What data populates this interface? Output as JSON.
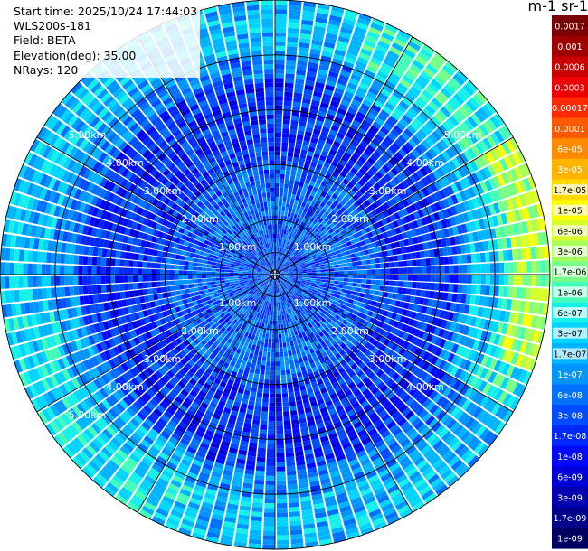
{
  "info": {
    "start_time": "Start time: 2025/10/24 17:44:03",
    "instrument": "WLS200s-181",
    "field": "Field: BETA",
    "elevation": "Elevation(deg): 35.00",
    "nrays": "NRays: 120"
  },
  "colorbar": {
    "title": "m-1 sr-1",
    "ticks": [
      "0.0017",
      "0.001",
      "0.0006",
      "0.0003",
      "0.00017",
      "0.0001",
      "6e-05",
      "3e-05",
      "1.7e-05",
      "1e-05",
      "6e-06",
      "3e-06",
      "1.7e-06",
      "1e-06",
      "6e-07",
      "3e-07",
      "1.7e-07",
      "1e-07",
      "6e-08",
      "3e-08",
      "1.7e-08",
      "1e-08",
      "6e-09",
      "3e-09",
      "1.7e-09",
      "1e-09"
    ],
    "colors": [
      "#7a0000",
      "#a00000",
      "#c80000",
      "#ef0000",
      "#ff2a00",
      "#ff5a00",
      "#ff8a00",
      "#ffb400",
      "#ffd800",
      "#ffff00",
      "#d8ff2a",
      "#a8ff5a",
      "#78ff88",
      "#44ffb8",
      "#16f0e8",
      "#00d4ff",
      "#00b4ff",
      "#0094ff",
      "#0070ff",
      "#004cff",
      "#0028ff",
      "#0008ff",
      "#0000d8",
      "#0000b0",
      "#000088",
      "#000060"
    ]
  },
  "chart_data": {
    "type": "heatmap",
    "projection": "polar (PPI scan)",
    "field": "BETA",
    "elevation_deg": 35.0,
    "n_rays": 120,
    "range_unit": "km",
    "max_range_km": 5.0,
    "range_ring_labels": [
      "1.00km",
      "2.00km",
      "3.00km",
      "4.00km",
      "5.00km"
    ],
    "range_rings_km": [
      1,
      2,
      3,
      4,
      5
    ],
    "color_scale": "log",
    "value_range": [
      1e-09,
      0.0017
    ],
    "approx_pattern": [
      {
        "range_km": [
          0.0,
          2.0
        ],
        "beta": "3e-08 to 1.7e-07"
      },
      {
        "range_km": [
          2.0,
          3.5
        ],
        "beta": "1e-08 to 6e-08"
      },
      {
        "range_km": [
          3.5,
          5.0
        ],
        "beta": "6e-08 to 1.7e-06, east sector up to 1.7e-05"
      }
    ]
  }
}
